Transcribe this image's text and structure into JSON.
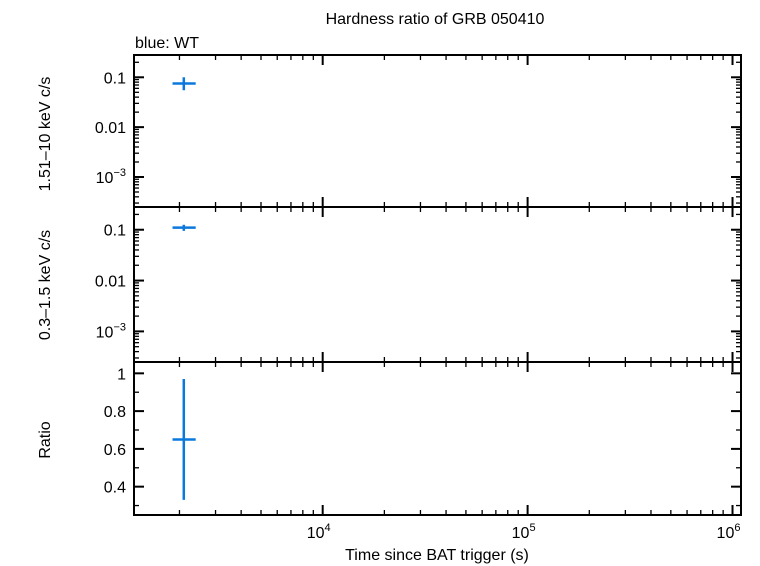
{
  "chart_data": {
    "type": "scatter",
    "title": "Hardness ratio of GRB 050410",
    "subtitle": "blue: WT",
    "xlabel": "Time since BAT trigger (s)",
    "x_scale": "log",
    "xlim": [
      1200,
      1100000
    ],
    "x_major_ticks": [
      {
        "base": "10",
        "exp": "4",
        "value": 10000
      },
      {
        "base": "10",
        "exp": "5",
        "value": 100000
      },
      {
        "base": "10",
        "exp": "6",
        "value": 1000000
      }
    ],
    "series_color": "#0a78dc",
    "panels": [
      {
        "ylabel": "1.51–10 keV c/s",
        "y_scale": "log",
        "ylim": [
          0.00025,
          0.28
        ],
        "y_ticks": [
          {
            "value": 0.1,
            "label": "0.1"
          },
          {
            "value": 0.01,
            "label": "0.01"
          },
          {
            "value": 0.001,
            "label": "10",
            "exp": "−3"
          }
        ],
        "points": [
          {
            "x": 2100,
            "y": 0.075,
            "x_lo": 1850,
            "x_hi": 2400,
            "y_lo": 0.055,
            "y_hi": 0.1
          }
        ]
      },
      {
        "ylabel": "0.3–1.5 keV c/s",
        "y_scale": "log",
        "ylim": [
          0.00025,
          0.28
        ],
        "y_ticks": [
          {
            "value": 0.1,
            "label": "0.1"
          },
          {
            "value": 0.01,
            "label": "0.01"
          },
          {
            "value": 0.001,
            "label": "10",
            "exp": "−3"
          }
        ],
        "points": [
          {
            "x": 2100,
            "y": 0.11,
            "x_lo": 1850,
            "x_hi": 2400,
            "y_lo": 0.095,
            "y_hi": 0.125
          }
        ]
      },
      {
        "ylabel": "Ratio",
        "y_scale": "linear",
        "ylim": [
          0.25,
          1.06
        ],
        "y_ticks": [
          {
            "value": 1,
            "label": "1"
          },
          {
            "value": 0.8,
            "label": "0.8"
          },
          {
            "value": 0.6,
            "label": "0.6"
          },
          {
            "value": 0.4,
            "label": "0.4"
          }
        ],
        "points": [
          {
            "x": 2100,
            "y": 0.65,
            "x_lo": 1850,
            "x_hi": 2400,
            "y_lo": 0.33,
            "y_hi": 0.97
          }
        ]
      }
    ]
  }
}
